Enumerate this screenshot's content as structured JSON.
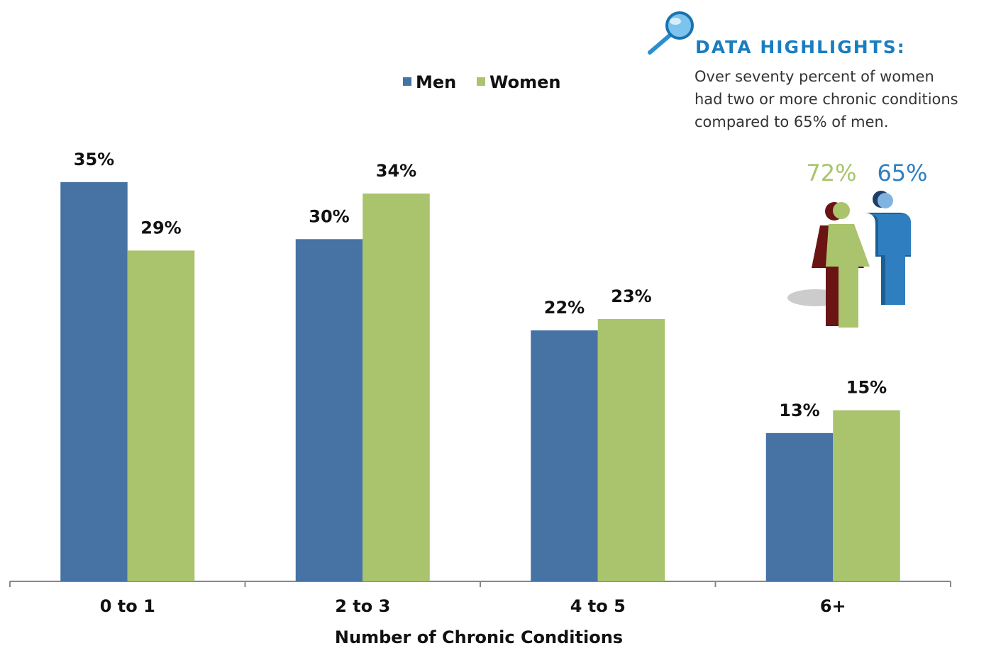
{
  "chart_data": {
    "type": "bar",
    "categories": [
      "0 to 1",
      "2 to 3",
      "4 to 5",
      "6+"
    ],
    "series": [
      {
        "name": "Men",
        "color": "#4672a4",
        "values": [
          35,
          30,
          22,
          13
        ],
        "value_labels": [
          "35%",
          "30%",
          "22%",
          "13%"
        ]
      },
      {
        "name": "Women",
        "color": "#a9c46c",
        "values": [
          29,
          34,
          23,
          15
        ],
        "value_labels": [
          "29%",
          "34%",
          "23%",
          "15%"
        ]
      }
    ],
    "x_label": "Number of Chronic Conditions"
  },
  "highlights": {
    "title": "DATA HIGHLIGHTS:",
    "lines": [
      "Over seventy percent of women",
      "had two or more chronic conditions",
      "compared to 65% of men."
    ],
    "women_stat": "72%",
    "men_stat": "65%"
  }
}
